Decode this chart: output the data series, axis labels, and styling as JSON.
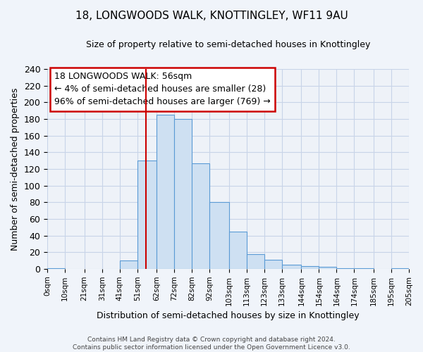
{
  "title": "18, LONGWOODS WALK, KNOTTINGLEY, WF11 9AU",
  "subtitle": "Size of property relative to semi-detached houses in Knottingley",
  "xlabel": "Distribution of semi-detached houses by size in Knottingley",
  "ylabel": "Number of semi-detached properties",
  "annotation_line1": "18 LONGWOODS WALK: 56sqm",
  "annotation_line2": "← 4% of semi-detached houses are smaller (28)",
  "annotation_line3": "96% of semi-detached houses are larger (769) →",
  "property_size": 56,
  "bar_left_edges": [
    0,
    10,
    21,
    31,
    41,
    51,
    62,
    72,
    82,
    92,
    103,
    113,
    123,
    133,
    144,
    154,
    164,
    174,
    185,
    195
  ],
  "bar_widths": [
    10,
    11,
    10,
    10,
    10,
    11,
    10,
    10,
    10,
    11,
    10,
    10,
    10,
    11,
    10,
    10,
    10,
    11,
    10,
    10
  ],
  "bar_heights": [
    1,
    0,
    0,
    0,
    10,
    130,
    185,
    180,
    127,
    80,
    45,
    18,
    11,
    5,
    3,
    2,
    1,
    1,
    0,
    1
  ],
  "tick_labels": [
    "0sqm",
    "10sqm",
    "21sqm",
    "31sqm",
    "41sqm",
    "51sqm",
    "62sqm",
    "72sqm",
    "82sqm",
    "92sqm",
    "103sqm",
    "113sqm",
    "123sqm",
    "133sqm",
    "144sqm",
    "154sqm",
    "164sqm",
    "174sqm",
    "185sqm",
    "195sqm",
    "205sqm"
  ],
  "bar_color": "#cee0f2",
  "bar_edge_color": "#5b9bd5",
  "vline_color": "#cc0000",
  "vline_x": 56,
  "box_edge_color": "#cc0000",
  "ylim": [
    0,
    240
  ],
  "yticks": [
    0,
    20,
    40,
    60,
    80,
    100,
    120,
    140,
    160,
    180,
    200,
    220,
    240
  ],
  "footer_line1": "Contains HM Land Registry data © Crown copyright and database right 2024.",
  "footer_line2": "Contains public sector information licensed under the Open Government Licence v3.0.",
  "bg_color": "#f0f4fa",
  "plot_bg_color": "#eef2f8",
  "grid_color": "#c8d4e8"
}
